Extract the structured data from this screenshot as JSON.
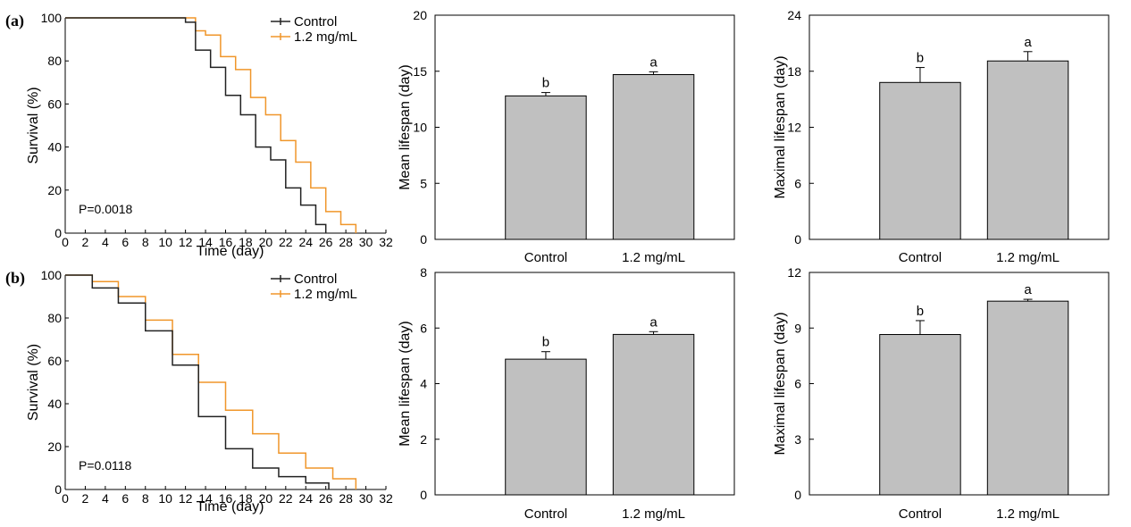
{
  "colors": {
    "control": "#222222",
    "treatment": "#f0962a",
    "bar_fill": "#c0c0c0",
    "axis": "#000000"
  },
  "rows": [
    {
      "label": "(a)"
    },
    {
      "label": "(b)"
    }
  ],
  "chart_data": [
    {
      "id": "a-survival",
      "type": "line",
      "step": true,
      "xlabel": "Time (day)",
      "ylabel": "Survival (%)",
      "xlim": [
        0,
        32
      ],
      "ylim": [
        0,
        100
      ],
      "xticks": [
        0,
        2,
        4,
        6,
        8,
        10,
        12,
        14,
        16,
        18,
        20,
        22,
        24,
        26,
        28,
        30,
        32
      ],
      "yticks": [
        0,
        20,
        40,
        60,
        80,
        100
      ],
      "annotation": "P=0.0018",
      "legend_position": "top-right",
      "series": [
        {
          "name": "Control",
          "key": "control",
          "x": [
            0,
            12,
            13,
            14.5,
            16,
            17.5,
            19,
            20.5,
            22,
            23.5,
            25,
            26
          ],
          "y": [
            100,
            98,
            85,
            77,
            64,
            55,
            40,
            34,
            21,
            13,
            4,
            0
          ]
        },
        {
          "name": "1.2 mg/mL",
          "key": "treatment",
          "x": [
            0,
            13,
            14,
            15.5,
            17,
            18.5,
            20,
            21.5,
            23,
            24.5,
            26,
            27.5,
            29
          ],
          "y": [
            100,
            94,
            92,
            82,
            76,
            63,
            55,
            43,
            33,
            21,
            10,
            4,
            0
          ]
        }
      ]
    },
    {
      "id": "a-mean",
      "type": "bar",
      "ylabel": "Mean lifespan (day)",
      "categories": [
        "Control",
        "1.2 mg/mL"
      ],
      "values": [
        12.8,
        14.7
      ],
      "errors": [
        0.3,
        0.25
      ],
      "letters": [
        "b",
        "a"
      ],
      "ylim": [
        0,
        20
      ],
      "yticks": [
        0,
        5,
        10,
        15,
        20
      ]
    },
    {
      "id": "a-max",
      "type": "bar",
      "ylabel": "Maximal lifespan (day)",
      "categories": [
        "Control",
        "1.2 mg/mL"
      ],
      "values": [
        16.8,
        19.1
      ],
      "errors": [
        1.6,
        1.0
      ],
      "letters": [
        "b",
        "a"
      ],
      "ylim": [
        0,
        24
      ],
      "yticks": [
        0,
        6,
        12,
        18,
        24
      ]
    },
    {
      "id": "b-survival",
      "type": "line",
      "step": true,
      "xlabel": "Time (day)",
      "ylabel": "Survival (%)",
      "xlim": [
        0,
        32
      ],
      "ylim": [
        0,
        100
      ],
      "xticks": [
        0,
        2,
        4,
        6,
        8,
        10,
        12,
        14,
        16,
        18,
        20,
        22,
        24,
        26,
        28,
        30,
        32
      ],
      "yticks": [
        0,
        20,
        40,
        60,
        80,
        100
      ],
      "annotation": "P=0.0118",
      "legend_position": "top-right",
      "series": [
        {
          "name": "Control",
          "key": "control",
          "x": [
            0,
            2.7,
            5.3,
            8,
            10.7,
            13.3,
            16,
            18.7,
            21.3,
            24,
            26.3
          ],
          "y": [
            100,
            94,
            87,
            74,
            58,
            34,
            19,
            10,
            6,
            3,
            0
          ]
        },
        {
          "name": "1.2 mg/mL",
          "key": "treatment",
          "x": [
            0,
            2.7,
            5.3,
            8,
            10.7,
            13.3,
            16,
            18.7,
            21.3,
            24,
            26.7,
            29
          ],
          "y": [
            100,
            97,
            90,
            79,
            63,
            50,
            37,
            26,
            17,
            10,
            5,
            0
          ]
        }
      ]
    },
    {
      "id": "b-mean",
      "type": "bar",
      "ylabel": "Mean lifespan (day)",
      "categories": [
        "Control",
        "1.2 mg/mL"
      ],
      "values": [
        4.88,
        5.77
      ],
      "errors": [
        0.27,
        0.1
      ],
      "letters": [
        "b",
        "a"
      ],
      "ylim": [
        0,
        8
      ],
      "yticks": [
        0,
        2,
        4,
        6,
        8
      ]
    },
    {
      "id": "b-max",
      "type": "bar",
      "ylabel": "Maximal lifespan (day)",
      "categories": [
        "Control",
        "1.2 mg/mL"
      ],
      "values": [
        8.65,
        10.45
      ],
      "errors": [
        0.75,
        0.1
      ],
      "letters": [
        "b",
        "a"
      ],
      "ylim": [
        0,
        12
      ],
      "yticks": [
        0,
        3,
        6,
        9,
        12
      ]
    }
  ]
}
